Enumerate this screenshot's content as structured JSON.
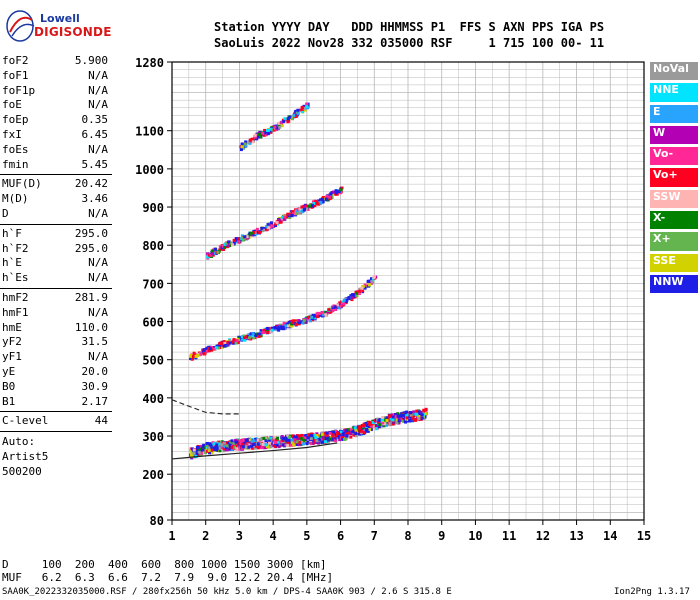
{
  "logo": {
    "line1": "Lowell",
    "line2": "DIGISONDE"
  },
  "header": {
    "line1": "Station YYYY DAY   DDD HHMMSS P1  FFS S AXN PPS IGA PS",
    "line2": "SaoLuis 2022 Nov28 332 035000 RSF     1 715 100 00- 11"
  },
  "params": [
    {
      "label": "foF2",
      "value": "5.900"
    },
    {
      "label": "foF1",
      "value": "N/A"
    },
    {
      "label": "foF1p",
      "value": "N/A"
    },
    {
      "label": "foE",
      "value": "N/A"
    },
    {
      "label": "foEp",
      "value": "0.35"
    },
    {
      "label": "fxI",
      "value": "6.45"
    },
    {
      "label": "foEs",
      "value": "N/A"
    },
    {
      "label": "fmin",
      "value": "5.45"
    },
    {
      "label": "MUF(D)",
      "value": "20.42"
    },
    {
      "label": "M(D)",
      "value": "3.46"
    },
    {
      "label": "D",
      "value": "N/A"
    },
    {
      "label": "h`F",
      "value": "295.0"
    },
    {
      "label": "h`F2",
      "value": "295.0"
    },
    {
      "label": "h`E",
      "value": "N/A"
    },
    {
      "label": "h`Es",
      "value": "N/A"
    },
    {
      "label": "hmF2",
      "value": "281.9"
    },
    {
      "label": "hmF1",
      "value": "N/A"
    },
    {
      "label": "hmE",
      "value": "110.0"
    },
    {
      "label": "yF2",
      "value": "31.5"
    },
    {
      "label": "yF1",
      "value": "N/A"
    },
    {
      "label": "yE",
      "value": "20.0"
    },
    {
      "label": "B0",
      "value": "30.9"
    },
    {
      "label": "B1",
      "value": "2.17"
    },
    {
      "label": "C-level",
      "value": "44"
    }
  ],
  "autoscaling": {
    "label": "Auto:",
    "name": "Artist5",
    "version": "500200"
  },
  "legend": [
    {
      "label": "NoVal",
      "color": "#9a9a9a"
    },
    {
      "label": "NNE",
      "color": "#00e4ff"
    },
    {
      "label": "E",
      "color": "#28a4ff"
    },
    {
      "label": "W",
      "color": "#b400b4"
    },
    {
      "label": "Vo-",
      "color": "#ff2896"
    },
    {
      "label": "Vo+",
      "color": "#ff0020"
    },
    {
      "label": "SSW",
      "color": "#ffb4b4"
    },
    {
      "label": "X-",
      "color": "#008200"
    },
    {
      "label": "X+",
      "color": "#64b450"
    },
    {
      "label": "SSE",
      "color": "#d2d200"
    },
    {
      "label": "NNW",
      "color": "#1e1ee6"
    }
  ],
  "muf_table": {
    "d_label": "D",
    "d_values": "100  200  400  600  800 1000 1500 3000 [km]",
    "muf_label": "MUF",
    "muf_values": "6.2  6.3  6.6  7.2  7.9  9.0 12.2 20.4 [MHz]"
  },
  "footer": {
    "left": "SAA0K_2022332035000.RSF / 280fx256h 50 kHz 5.0 km / DPS-4 SAA0K 903 / 2.6 S 315.8 E",
    "right": "Ion2Png 1.3.17"
  },
  "chart_data": {
    "type": "scatter",
    "title": "",
    "xlabel": "",
    "ylabel": "",
    "xlim": [
      1,
      15
    ],
    "ylim": [
      80,
      1280
    ],
    "x_ticks": [
      1,
      2,
      3,
      4,
      5,
      6,
      7,
      8,
      9,
      10,
      11,
      12,
      13,
      14,
      15
    ],
    "y_ticks": [
      80,
      200,
      300,
      400,
      500,
      600,
      700,
      800,
      900,
      1000,
      1100,
      1280
    ],
    "grid": true,
    "series": [
      {
        "name": "O-trace (F2)",
        "x": [
          1.5,
          2.0,
          2.5,
          3.0,
          3.5,
          4.0,
          4.5,
          5.0,
          5.5,
          6.0,
          6.5,
          7.0,
          7.5,
          8.0,
          8.5
        ],
        "y": [
          258,
          272,
          278,
          282,
          285,
          288,
          292,
          296,
          300,
          306,
          318,
          335,
          348,
          355,
          362
        ]
      },
      {
        "name": "2nd hop",
        "x": [
          1.5,
          2.0,
          2.5,
          3.0,
          3.5,
          4.0,
          4.5,
          5.0,
          5.5,
          6.0,
          6.5,
          7.0
        ],
        "y": [
          510,
          528,
          545,
          558,
          570,
          585,
          598,
          610,
          625,
          650,
          680,
          720
        ]
      },
      {
        "name": "3rd hop",
        "x": [
          2.0,
          2.5,
          3.0,
          3.5,
          4.0,
          4.5,
          5.0,
          5.5,
          6.0
        ],
        "y": [
          775,
          800,
          820,
          840,
          860,
          885,
          905,
          925,
          950
        ]
      },
      {
        "name": "4th hop",
        "x": [
          3.0,
          3.5,
          4.0,
          4.5,
          5.0
        ],
        "y": [
          1060,
          1090,
          1110,
          1140,
          1170
        ]
      }
    ],
    "profile_curve": {
      "x": [
        1.0,
        2.0,
        3.0,
        4.0,
        5.0,
        5.9
      ],
      "y": [
        240,
        248,
        255,
        262,
        270,
        281.9
      ]
    },
    "profile_upper": {
      "x": [
        1.0,
        1.5,
        2.0,
        2.5,
        3.0
      ],
      "y": [
        395,
        378,
        362,
        358,
        358
      ]
    }
  }
}
